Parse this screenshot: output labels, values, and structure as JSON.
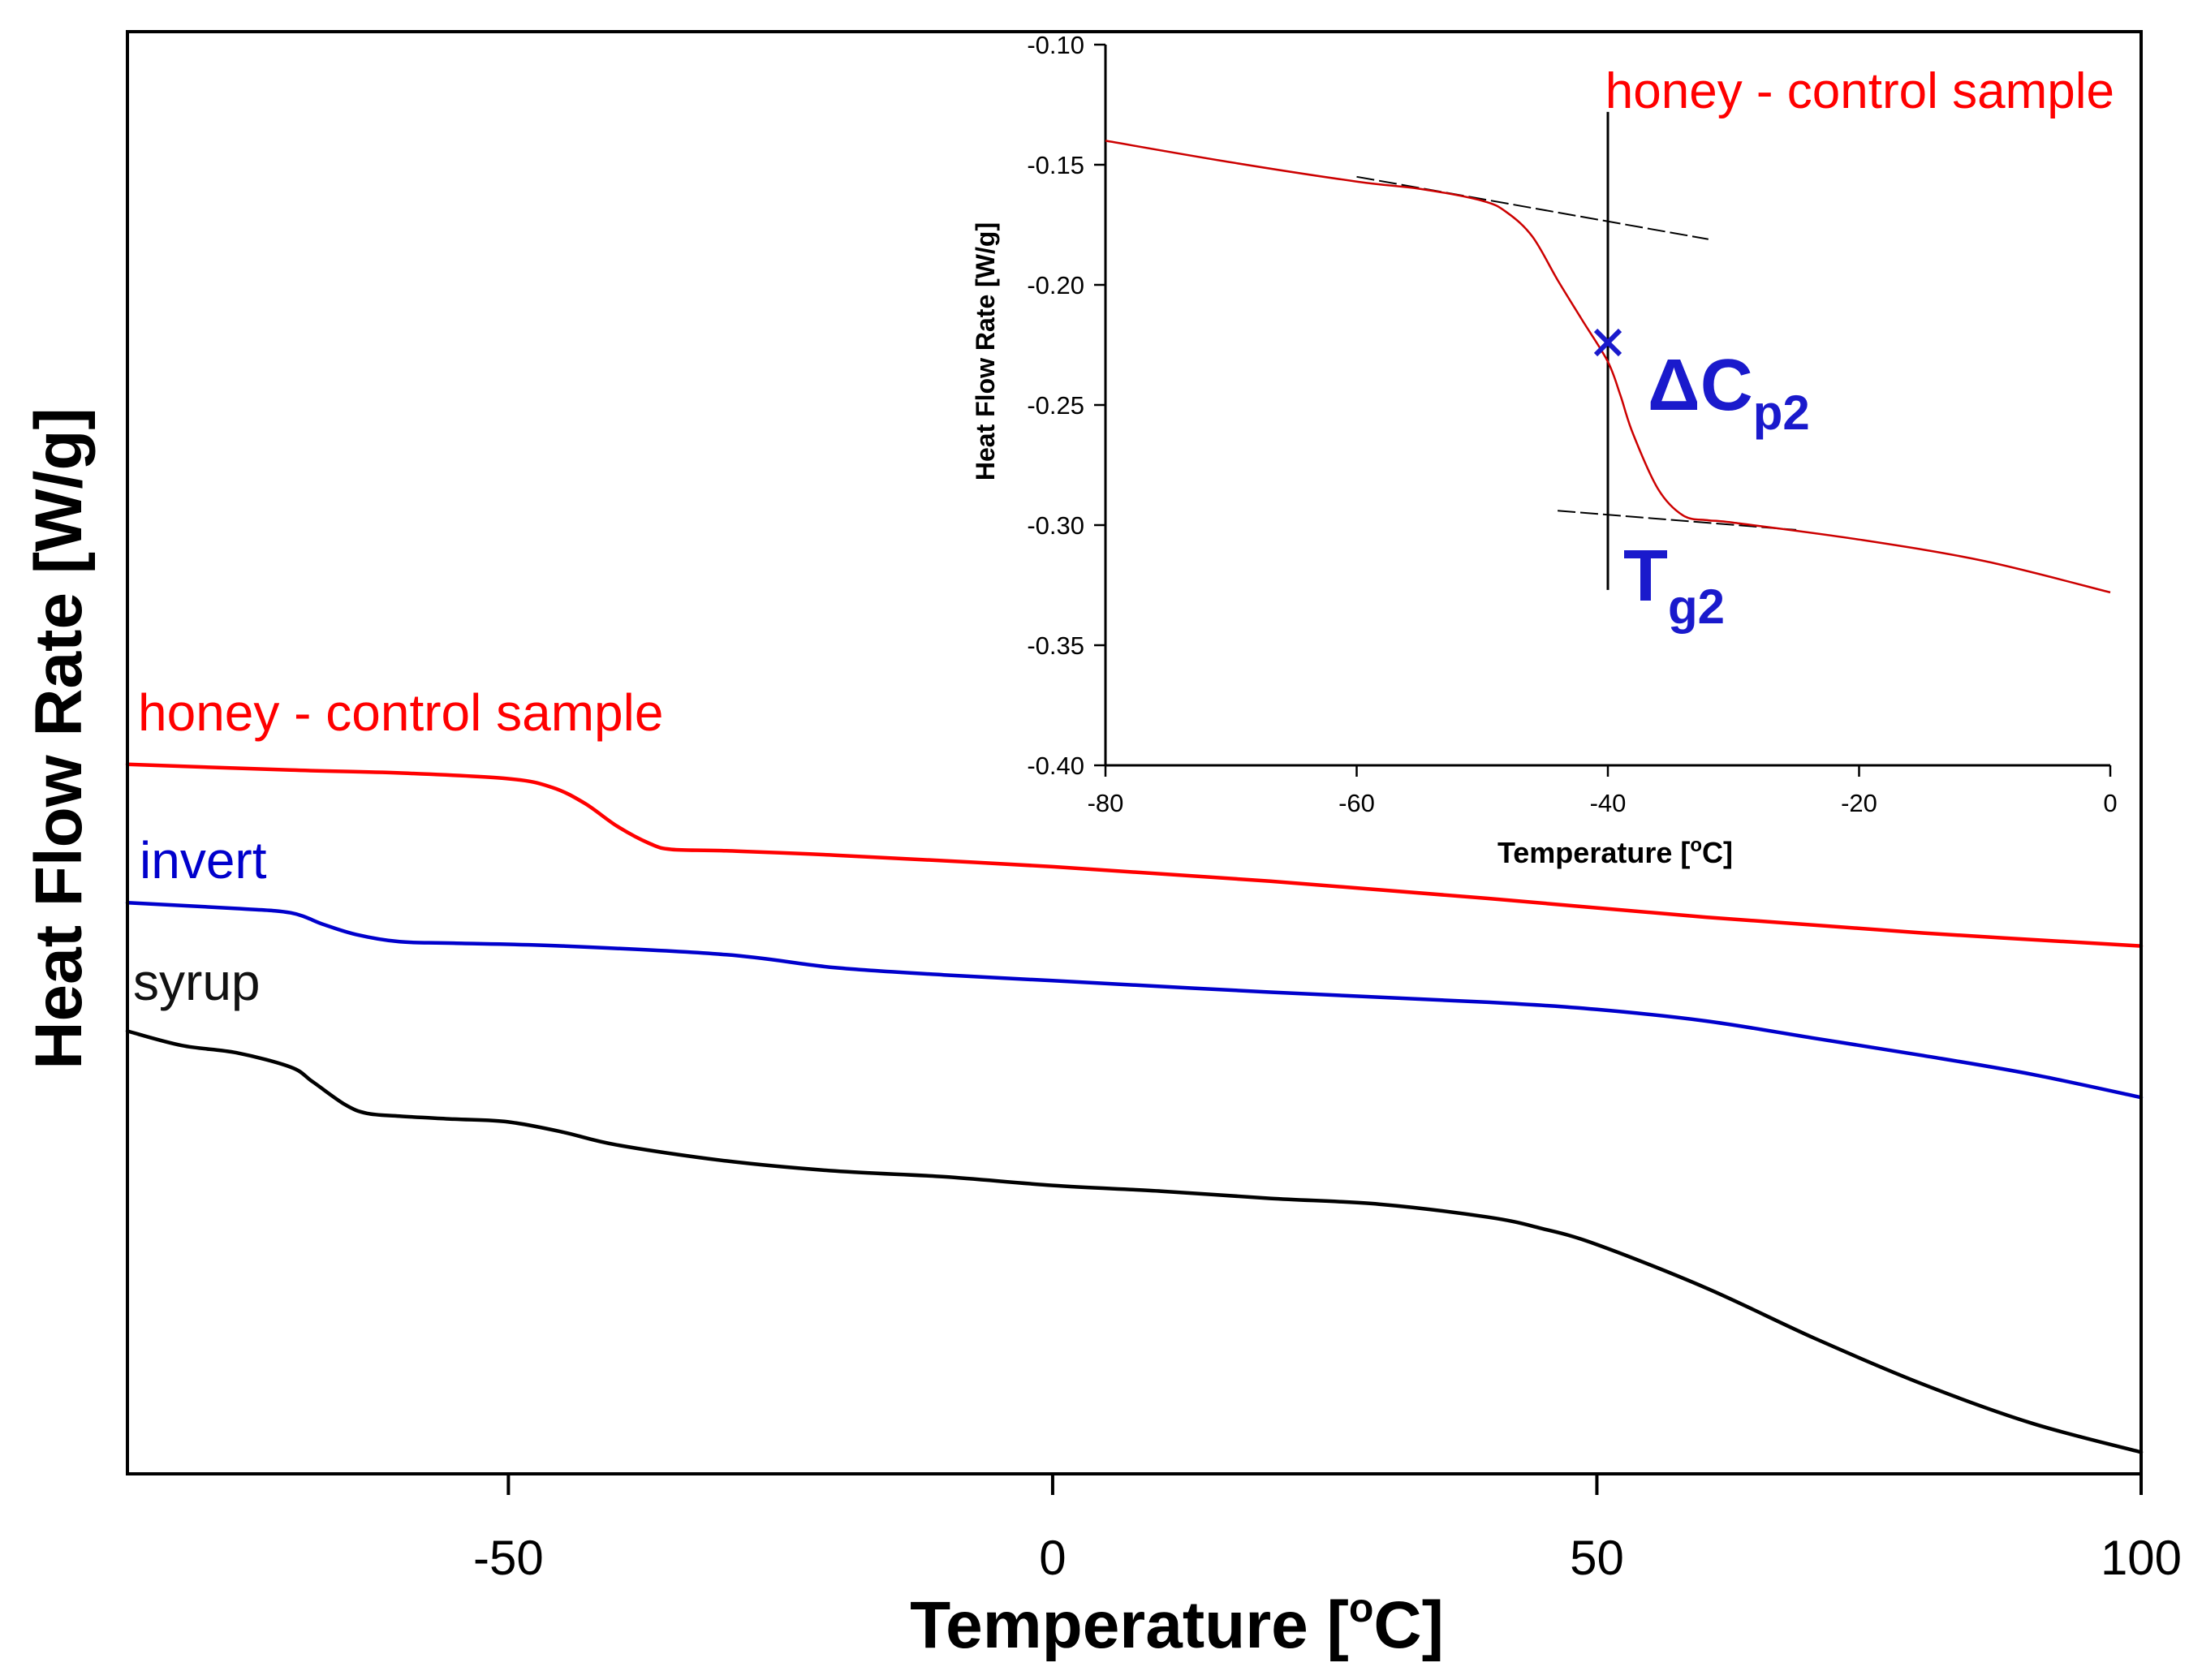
{
  "chart_data": [
    {
      "type": "line",
      "xlabel": "Temperature [",
      "xlabel_unit_sup": "o",
      "xlabel_unit": "C]",
      "ylabel": "Heat Flow Rate [W/g]",
      "xlim": [
        -85,
        100
      ],
      "ylim": [
        0,
        100
      ],
      "y_ticks_shown": false,
      "x_ticks": [
        -50,
        0,
        50,
        100
      ],
      "x_tick_labels": [
        "-50",
        "0",
        "50",
        "100"
      ],
      "series": [
        {
          "name": "honey - control sample",
          "color": "#ff0000",
          "x": [
            -85,
            -70,
            -60,
            -50,
            -46,
            -43,
            -40,
            -37,
            -35,
            -30,
            -20,
            0,
            20,
            40,
            60,
            80,
            100
          ],
          "y": [
            49.2,
            48.8,
            48.6,
            48.2,
            47.6,
            46.5,
            44.9,
            43.7,
            43.3,
            43.2,
            42.9,
            42.1,
            41.1,
            39.9,
            38.6,
            37.5,
            36.6
          ]
        },
        {
          "name": "invert",
          "color": "#0000cc",
          "x": [
            -85,
            -75,
            -70,
            -67,
            -64,
            -60,
            -55,
            -45,
            -30,
            -20,
            -10,
            0,
            20,
            40,
            50,
            60,
            70,
            80,
            90,
            100
          ],
          "y": [
            39.6,
            39.2,
            38.9,
            38.1,
            37.4,
            36.9,
            36.8,
            36.6,
            36.0,
            35.1,
            34.6,
            34.2,
            33.4,
            32.7,
            32.2,
            31.4,
            30.2,
            29.0,
            27.7,
            26.1
          ]
        },
        {
          "name": "syrup",
          "color": "#000000",
          "x": [
            -85,
            -80,
            -75,
            -70,
            -68,
            -65,
            -63,
            -60,
            -55,
            -50,
            -45,
            -40,
            -30,
            -20,
            -10,
            0,
            10,
            20,
            30,
            40,
            45,
            50,
            60,
            70,
            80,
            90,
            100
          ],
          "y": [
            30.7,
            29.7,
            29.2,
            28.2,
            27.2,
            25.6,
            25.0,
            24.8,
            24.6,
            24.4,
            23.7,
            22.8,
            21.7,
            21.0,
            20.6,
            20.0,
            19.6,
            19.1,
            18.7,
            17.8,
            17.0,
            15.9,
            12.9,
            9.4,
            6.2,
            3.5,
            1.5
          ]
        }
      ]
    },
    {
      "type": "line",
      "inset": true,
      "xlabel": "Temperature [",
      "xlabel_unit_sup": "o",
      "xlabel_unit": "C]",
      "ylabel": "Heat Flow Rate [W/g]",
      "xlim": [
        -80,
        0
      ],
      "ylim": [
        -0.4,
        -0.1
      ],
      "x_ticks": [
        -80,
        -60,
        -40,
        -20,
        0
      ],
      "x_tick_labels": [
        "-80",
        "-60",
        "-40",
        "-20",
        "0"
      ],
      "y_ticks": [
        -0.4,
        -0.35,
        -0.3,
        -0.25,
        -0.2,
        -0.15,
        -0.1
      ],
      "y_tick_labels": [
        "-0.40",
        "-0.35",
        "-0.30",
        "-0.25",
        "-0.20",
        "-0.15",
        "-0.10"
      ],
      "series": [
        {
          "name": "honey - control sample",
          "color": "#cc0000",
          "x": [
            -80,
            -70,
            -60,
            -55,
            -50,
            -48,
            -46,
            -44,
            -42,
            -40,
            -39,
            -38,
            -36,
            -34,
            -32,
            -30,
            -20,
            -10,
            0
          ],
          "y": [
            -0.14,
            -0.149,
            -0.157,
            -0.16,
            -0.165,
            -0.17,
            -0.18,
            -0.198,
            -0.215,
            -0.232,
            -0.246,
            -0.262,
            -0.285,
            -0.296,
            -0.298,
            -0.299,
            -0.306,
            -0.315,
            -0.328
          ]
        }
      ],
      "tangent_lines": [
        {
          "x": [
            -60,
            -32
          ],
          "y": [
            -0.155,
            -0.181
          ]
        },
        {
          "x": [
            -44,
            -25
          ],
          "y": [
            -0.294,
            -0.302
          ]
        }
      ],
      "marker_line_x": -40,
      "marker_line_y": [
        -0.128,
        -0.327
      ],
      "cross_point": {
        "x": -40,
        "y": -0.224,
        "symbol": "x"
      },
      "annotations": {
        "legend_label": "honey - control sample",
        "delta_cp": "ΔC",
        "delta_cp_sub": "p2",
        "tg": "T",
        "tg_sub": "g2"
      }
    }
  ]
}
